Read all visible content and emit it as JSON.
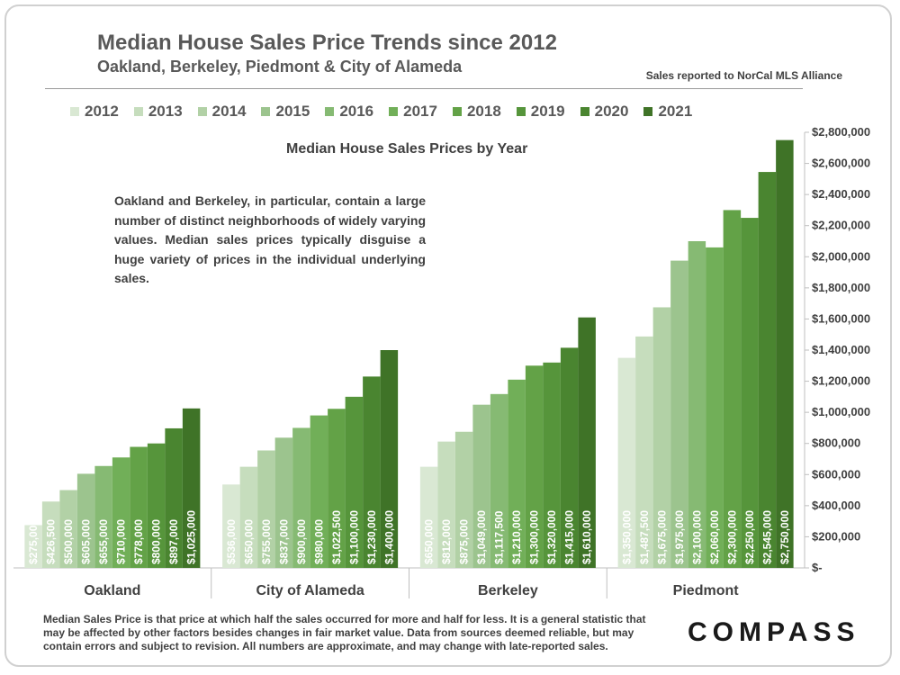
{
  "header": {
    "title": "Median House Sales Price Trends since 2012",
    "subtitle": "Oakland, Berkeley, Piedmont & City of Alameda",
    "source": "Sales reported to NorCal MLS Alliance"
  },
  "annotation": "Oakland and Berkeley, in particular, contain a large number of distinct neighborhoods of widely varying values. Median sales prices typically disguise a huge variety of prices in the individual underlying sales.",
  "footnote": "Median Sales Price is that price at which half the sales occurred for more and half for less. It is a general statistic that may be affected by other factors besides changes in fair market value. Data from sources deemed reliable, but may contain errors and subject to revision.  All numbers are approximate, and may change with late-reported sales.",
  "brand": "COMPASS",
  "colors": [
    "#d9e8d3",
    "#c6ddbd",
    "#b2d1a6",
    "#9cc48e",
    "#86ba73",
    "#71af58",
    "#63a247",
    "#56953b",
    "#4a8530",
    "#3f7327"
  ],
  "chart_data": {
    "type": "bar",
    "title": "Median House Sales Prices by Year",
    "categories": [
      "Oakland",
      "City of Alameda",
      "Berkeley",
      "Piedmont"
    ],
    "series": [
      {
        "name": "2012",
        "values": [
          275000,
          536000,
          650000,
          1350000
        ],
        "labels": [
          "$275,000",
          "$536,000",
          "$650,000",
          "$1,350,000"
        ]
      },
      {
        "name": "2013",
        "values": [
          426500,
          650000,
          812000,
          1487500
        ],
        "labels": [
          "$426,500",
          "$650,000",
          "$812,000",
          "$1,487,500"
        ]
      },
      {
        "name": "2014",
        "values": [
          500000,
          755000,
          875000,
          1675000
        ],
        "labels": [
          "$500,000",
          "$755,000",
          "$875,000",
          "$1,675,000"
        ]
      },
      {
        "name": "2015",
        "values": [
          605000,
          837000,
          1049000,
          1975000
        ],
        "labels": [
          "$605,000",
          "$837,000",
          "$1,049,000",
          "$1,975,000"
        ]
      },
      {
        "name": "2016",
        "values": [
          655000,
          900000,
          1117500,
          2100000
        ],
        "labels": [
          "$655,000",
          "$900,000",
          "$1,117,500",
          "$2,100,000"
        ]
      },
      {
        "name": "2017",
        "values": [
          710000,
          980000,
          1210000,
          2060000
        ],
        "labels": [
          "$710,000",
          "$980,000",
          "$1,210,000",
          "$2,060,000"
        ]
      },
      {
        "name": "2018",
        "values": [
          778000,
          1022500,
          1300000,
          2300000
        ],
        "labels": [
          "$778,000",
          "$1,022,500",
          "$1,300,000",
          "$2,300,000"
        ]
      },
      {
        "name": "2019",
        "values": [
          800000,
          1100000,
          1320000,
          2250000
        ],
        "labels": [
          "$800,000",
          "$1,100,000",
          "$1,320,000",
          "$2,250,000"
        ]
      },
      {
        "name": "2020",
        "values": [
          897000,
          1230000,
          1415000,
          2545000
        ],
        "labels": [
          "$897,000",
          "$1,230,000",
          "$1,415,000",
          "$2,545,000"
        ]
      },
      {
        "name": "2021",
        "values": [
          1025000,
          1400000,
          1610000,
          2750000
        ],
        "labels": [
          "$1,025,000",
          "$1,400,000",
          "$1,610,000",
          "$2,750,000"
        ]
      }
    ],
    "ylim": [
      0,
      2800000
    ],
    "yticks": [
      {
        "value": 0,
        "label": "$-"
      },
      {
        "value": 200000,
        "label": "$200,000"
      },
      {
        "value": 400000,
        "label": "$400,000"
      },
      {
        "value": 600000,
        "label": "$600,000"
      },
      {
        "value": 800000,
        "label": "$800,000"
      },
      {
        "value": 1000000,
        "label": "$1,000,000"
      },
      {
        "value": 1200000,
        "label": "$1,200,000"
      },
      {
        "value": 1400000,
        "label": "$1,400,000"
      },
      {
        "value": 1600000,
        "label": "$1,600,000"
      },
      {
        "value": 1800000,
        "label": "$1,800,000"
      },
      {
        "value": 2000000,
        "label": "$2,000,000"
      },
      {
        "value": 2200000,
        "label": "$2,200,000"
      },
      {
        "value": 2400000,
        "label": "$2,400,000"
      },
      {
        "value": 2600000,
        "label": "$2,600,000"
      },
      {
        "value": 2800000,
        "label": "$2,800,000"
      }
    ],
    "legend_position": "top",
    "y_axis_side": "right",
    "grid": false
  }
}
